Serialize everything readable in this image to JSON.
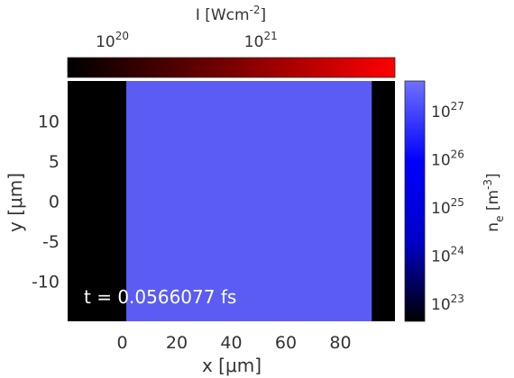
{
  "chart_data": {
    "type": "heatmap",
    "title": "",
    "xlabel": "x [μm]",
    "ylabel": "y [μm]",
    "xlim": [
      -20,
      100
    ],
    "ylim": [
      -15,
      15
    ],
    "xticks": [
      0,
      20,
      40,
      60,
      80
    ],
    "yticks": [
      10,
      5,
      0,
      -5,
      -10
    ],
    "xtick_labels": [
      "0",
      "20",
      "40",
      "60",
      "80"
    ],
    "ytick_labels": [
      "10",
      "5",
      "0",
      "-5",
      "-10"
    ],
    "annotation": "t = 0.0566077 fs",
    "target_region": {
      "x_start": 1.5,
      "x_end": 91.5,
      "ne_value": 1e+27
    },
    "background_color": "#000000",
    "target_color": "#5a5cf4",
    "intensity_colorbar": {
      "label": "I [Wcm",
      "label_exponent": "-2",
      "label_close": "]",
      "scale": "log",
      "range": [
        5e+19,
        8e+21
      ],
      "ticks": [
        {
          "value": 1e+20,
          "mantissa": "10",
          "exponent": "20"
        },
        {
          "value": 1e+21,
          "mantissa": "10",
          "exponent": "21"
        }
      ],
      "colors": [
        "#000000",
        "#7a0000",
        "#ff0000"
      ]
    },
    "density_colorbar": {
      "label": "n",
      "label_subscript": "e",
      "label_unit": "[m",
      "label_unit_exponent": "-3",
      "label_unit_close": "]",
      "scale": "log",
      "range": [
        4e+22,
        4e+27
      ],
      "ticks": [
        {
          "value": 1e+27,
          "mantissa": "10",
          "exponent": "27"
        },
        {
          "value": 1e+26,
          "mantissa": "10",
          "exponent": "26"
        },
        {
          "value": 1e+25,
          "mantissa": "10",
          "exponent": "25"
        },
        {
          "value": 1e+24,
          "mantissa": "10",
          "exponent": "24"
        },
        {
          "value": 1e+23,
          "mantissa": "10",
          "exponent": "23"
        }
      ],
      "colors": [
        "#000000",
        "#0000c8",
        "#0000ff",
        "#7070ff"
      ]
    }
  }
}
